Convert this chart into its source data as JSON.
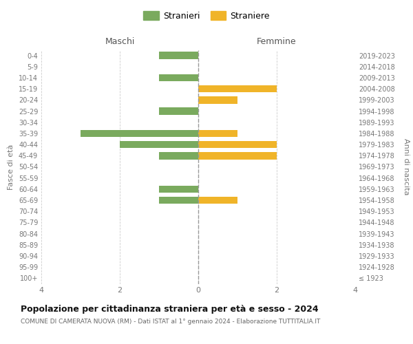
{
  "age_groups": [
    "100+",
    "95-99",
    "90-94",
    "85-89",
    "80-84",
    "75-79",
    "70-74",
    "65-69",
    "60-64",
    "55-59",
    "50-54",
    "45-49",
    "40-44",
    "35-39",
    "30-34",
    "25-29",
    "20-24",
    "15-19",
    "10-14",
    "5-9",
    "0-4"
  ],
  "birth_years": [
    "≤ 1923",
    "1924-1928",
    "1929-1933",
    "1934-1938",
    "1939-1943",
    "1944-1948",
    "1949-1953",
    "1954-1958",
    "1959-1963",
    "1964-1968",
    "1969-1973",
    "1974-1978",
    "1979-1983",
    "1984-1988",
    "1989-1993",
    "1994-1998",
    "1999-2003",
    "2004-2008",
    "2009-2013",
    "2014-2018",
    "2019-2023"
  ],
  "maschi": [
    0,
    0,
    0,
    0,
    0,
    0,
    0,
    -1,
    -1,
    0,
    0,
    -1,
    -2,
    -3,
    0,
    -1,
    0,
    0,
    -1,
    0,
    -1
  ],
  "femmine": [
    0,
    0,
    0,
    0,
    0,
    0,
    0,
    1,
    0,
    0,
    0,
    2,
    2,
    1,
    0,
    0,
    1,
    2,
    0,
    0,
    0
  ],
  "color_maschi": "#7aaa5e",
  "color_femmine": "#f0b429",
  "title": "Popolazione per cittadinanza straniera per età e sesso - 2024",
  "subtitle": "COMUNE DI CAMERATA NUOVA (RM) - Dati ISTAT al 1° gennaio 2024 - Elaborazione TUTTITALIA.IT",
  "legend_maschi": "Stranieri",
  "legend_femmine": "Straniere",
  "header_left": "Maschi",
  "header_right": "Femmine",
  "ylabel_left": "Fasce di età",
  "ylabel_right": "Anni di nascita",
  "xlim": [
    -4,
    4
  ],
  "xticks": [
    -4,
    -2,
    0,
    2,
    4
  ],
  "xticklabels": [
    "4",
    "2",
    "0",
    "2",
    "4"
  ],
  "background_color": "#ffffff",
  "grid_color": "#cccccc",
  "bar_height": 0.65
}
